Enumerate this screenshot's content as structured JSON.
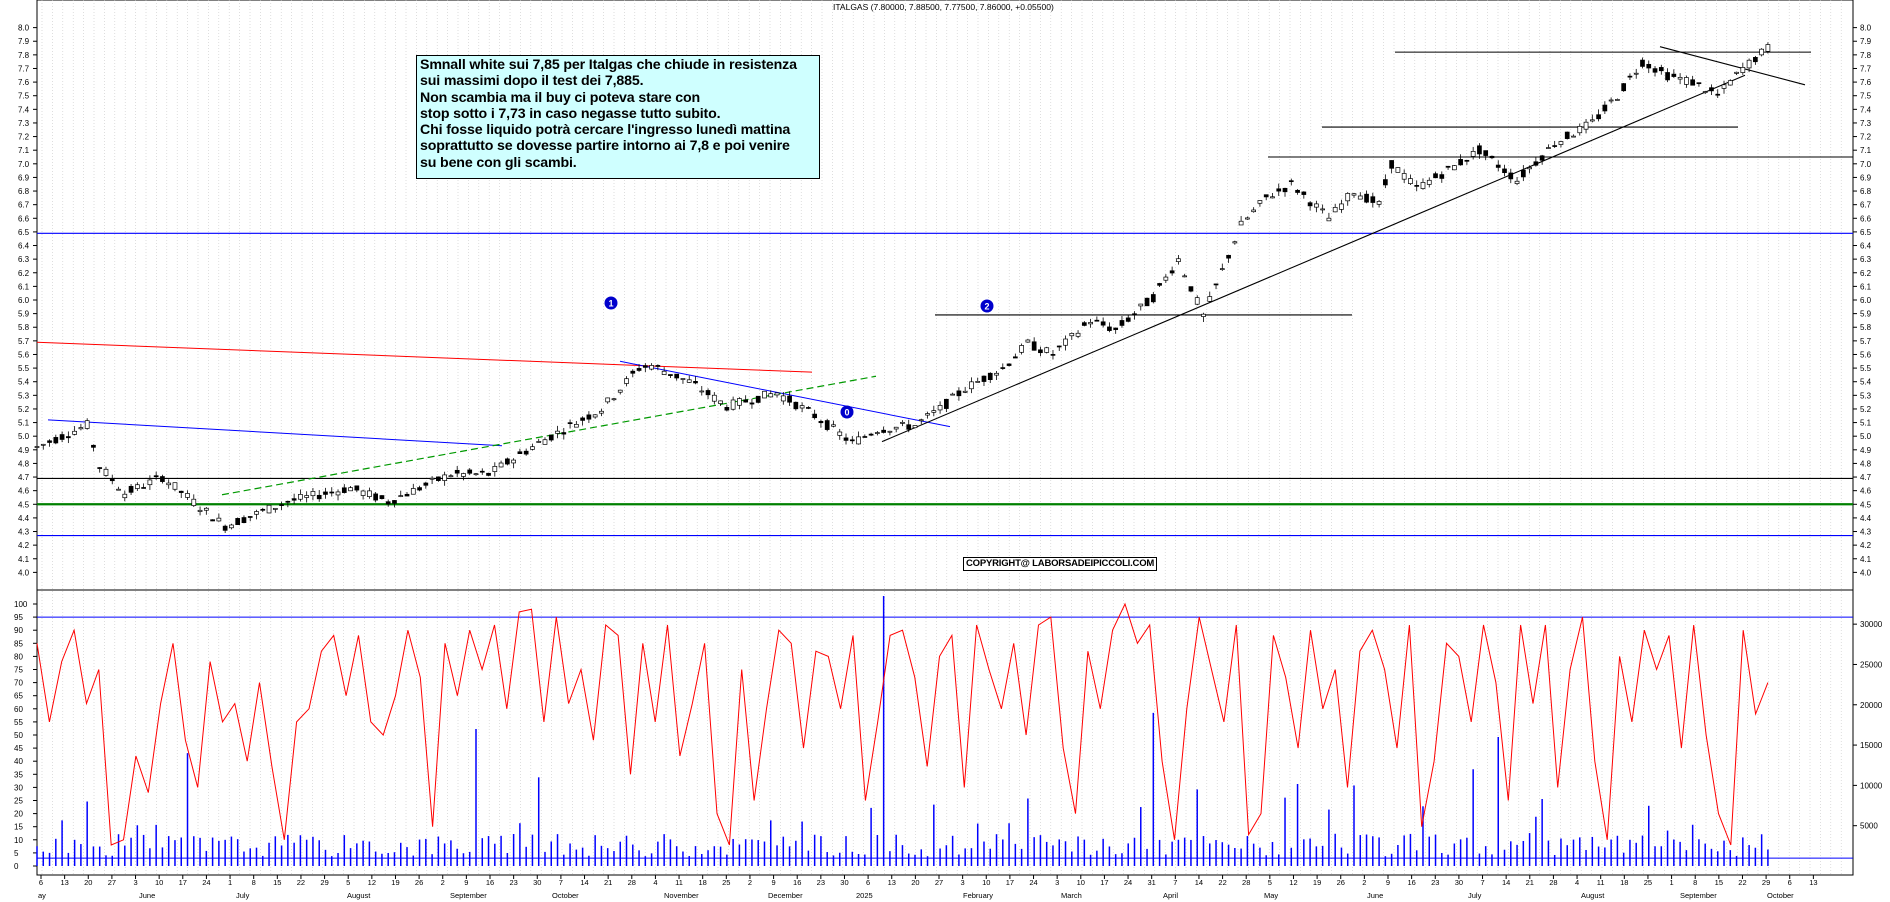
{
  "chart_data": {
    "title": "ITALGAS (7.80000, 7.88500, 7.77500, 7.86000, +0.05500)",
    "type": "candlestick",
    "price_axis": {
      "ylim": [
        3.9,
        8.1
      ],
      "ticks": [
        4.0,
        4.1,
        4.2,
        4.3,
        4.4,
        4.5,
        4.6,
        4.7,
        4.8,
        4.9,
        5.0,
        5.1,
        5.2,
        5.3,
        5.4,
        5.5,
        5.6,
        5.7,
        5.8,
        5.9,
        6.0,
        6.1,
        6.2,
        6.3,
        6.4,
        6.5,
        6.6,
        6.7,
        6.8,
        6.9,
        7.0,
        7.1,
        7.2,
        7.3,
        7.4,
        7.5,
        7.6,
        7.7,
        7.8,
        7.9,
        8.0
      ]
    },
    "oscillator_axis": {
      "ylim": [
        0,
        100
      ],
      "ticks": [
        0,
        5,
        10,
        15,
        20,
        25,
        30,
        35,
        40,
        45,
        50,
        55,
        60,
        65,
        70,
        75,
        80,
        85,
        90,
        95,
        100
      ]
    },
    "volume_axis": {
      "ticks": [
        5000,
        10000,
        15000,
        20000,
        25000,
        30000
      ]
    },
    "x_day_ticks": [
      "6",
      "13",
      "20",
      "27",
      "3",
      "10",
      "17",
      "24",
      "1",
      "8",
      "15",
      "22",
      "29",
      "5",
      "12",
      "19",
      "26",
      "2",
      "9",
      "16",
      "23",
      "30",
      "7",
      "14",
      "21",
      "28",
      "4",
      "11",
      "18",
      "25",
      "2",
      "9",
      "16",
      "23",
      "30",
      "6",
      "13",
      "20",
      "27",
      "3",
      "10",
      "17",
      "24",
      "3",
      "10",
      "17",
      "24",
      "31",
      "7",
      "14",
      "22",
      "28",
      "5",
      "12",
      "19",
      "26",
      "2",
      "9",
      "16",
      "23",
      "30",
      "7",
      "14",
      "21",
      "28",
      "4",
      "11",
      "18",
      "25",
      "1",
      "8",
      "15",
      "22",
      "29",
      "6",
      "13"
    ],
    "x_month_labels": [
      "ay",
      "June",
      "July",
      "August",
      "September",
      "October",
      "November",
      "December",
      "2025",
      "February",
      "March",
      "April",
      "May",
      "June",
      "July",
      "August",
      "September",
      "October"
    ],
    "price_path": [
      [
        0,
        4.92
      ],
      [
        8,
        5.08
      ],
      [
        10,
        4.78
      ],
      [
        14,
        4.58
      ],
      [
        20,
        4.7
      ],
      [
        26,
        4.48
      ],
      [
        30,
        4.34
      ],
      [
        40,
        4.52
      ],
      [
        50,
        4.62
      ],
      [
        56,
        4.52
      ],
      [
        66,
        4.72
      ],
      [
        72,
        4.72
      ],
      [
        80,
        4.95
      ],
      [
        86,
        5.1
      ],
      [
        90,
        5.2
      ],
      [
        96,
        5.5
      ],
      [
        98,
        5.52
      ],
      [
        104,
        5.4
      ],
      [
        110,
        5.22
      ],
      [
        118,
        5.32
      ],
      [
        124,
        5.15
      ],
      [
        130,
        4.95
      ],
      [
        134,
        5.05
      ],
      [
        140,
        5.08
      ],
      [
        144,
        5.2
      ],
      [
        148,
        5.35
      ],
      [
        154,
        5.5
      ],
      [
        158,
        5.68
      ],
      [
        162,
        5.6
      ],
      [
        168,
        5.85
      ],
      [
        172,
        5.78
      ],
      [
        178,
        6.02
      ],
      [
        182,
        6.3
      ],
      [
        186,
        5.88
      ],
      [
        192,
        6.55
      ],
      [
        196,
        6.75
      ],
      [
        200,
        6.85
      ],
      [
        206,
        6.6
      ],
      [
        210,
        6.8
      ],
      [
        214,
        6.7
      ],
      [
        216,
        7.0
      ],
      [
        220,
        6.82
      ],
      [
        226,
        6.98
      ],
      [
        230,
        7.1
      ],
      [
        236,
        6.88
      ],
      [
        242,
        7.15
      ],
      [
        248,
        7.3
      ],
      [
        252,
        7.5
      ],
      [
        256,
        7.75
      ],
      [
        260,
        7.65
      ],
      [
        264,
        7.6
      ],
      [
        268,
        7.5
      ],
      [
        272,
        7.7
      ],
      [
        276,
        7.85
      ]
    ],
    "annotation_markers": [
      "1",
      "2",
      "0"
    ],
    "horizontal_lines": [
      {
        "price": 6.49,
        "color": "#0000ff"
      },
      {
        "price": 4.69,
        "color": "#000000"
      },
      {
        "price": 4.5,
        "color": "#008000"
      },
      {
        "price": 4.27,
        "color": "#0000ff"
      },
      {
        "price": 5.89,
        "color": "#000000"
      },
      {
        "price": 7.05,
        "color": "#000000"
      },
      {
        "price": 7.27,
        "color": "#000000"
      },
      {
        "price": 7.82,
        "color": "#000000"
      }
    ],
    "oscillator_levels": [
      {
        "value": 95,
        "color": "#0000ff"
      },
      {
        "value": 3,
        "color": "#0000ff"
      }
    ],
    "oscillator_values": [
      85,
      55,
      78,
      90,
      62,
      75,
      8,
      10,
      42,
      28,
      62,
      85,
      48,
      30,
      78,
      55,
      62,
      40,
      70,
      38,
      10,
      55,
      60,
      82,
      88,
      65,
      88,
      55,
      50,
      65,
      90,
      72,
      15,
      85,
      65,
      90,
      75,
      92,
      60,
      97,
      98,
      55,
      95,
      62,
      75,
      48,
      92,
      88,
      35,
      85,
      55,
      92,
      42,
      62,
      85,
      20,
      8,
      75,
      25,
      60,
      90,
      85,
      45,
      82,
      80,
      60,
      88,
      25,
      55,
      88,
      90,
      72,
      38,
      80,
      88,
      30,
      92,
      75,
      60,
      85,
      50,
      92,
      95,
      45,
      20,
      82,
      60,
      90,
      100,
      85,
      92,
      40,
      10,
      60,
      95,
      75,
      55,
      92,
      12,
      20,
      88,
      72,
      45,
      90,
      60,
      75,
      30,
      82,
      90,
      75,
      45,
      92,
      15,
      40,
      85,
      80,
      55,
      92,
      70,
      25,
      92,
      62,
      92,
      30,
      75,
      95,
      40,
      10,
      80,
      55,
      90,
      75,
      88,
      45,
      92,
      50,
      20,
      8,
      90,
      58,
      70
    ]
  },
  "note": {
    "lines": [
      "Smnall white sui 7,85 per Italgas che chiude in resistenza",
      "sui massimi dopo il test dei 7,885.",
      "Non scambia ma il buy ci poteva stare con",
      "stop sotto i 7,73 in caso negasse tutto subito.",
      "Chi fosse liquido potrà cercare l'ingresso lunedì mattina",
      "soprattutto se dovesse partire intorno ai 7,8 e poi venire",
      "su bene con gli scambi."
    ]
  },
  "copyright": "COPYRIGHT@ LABORSADEIPICCOLI.COM",
  "colors": {
    "price_line_blue": "#0000ff",
    "price_line_green": "#008000",
    "oscillator": "#ff0000",
    "volume": "#0000ff",
    "trend_red": "#ff0000",
    "trend_blue": "#0000ff",
    "trend_green_dashed": "#009900",
    "trend_black": "#000000",
    "note_bg": "#cfffff"
  }
}
